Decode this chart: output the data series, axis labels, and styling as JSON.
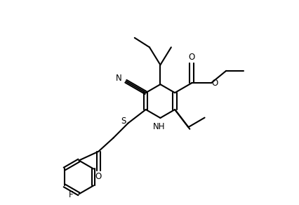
{
  "bg_color": "#ffffff",
  "line_color": "#000000",
  "line_width": 1.5,
  "fig_width": 4.26,
  "fig_height": 2.92,
  "dpi": 100,
  "xlim": [
    0,
    10
  ],
  "ylim": [
    0,
    7.5
  ]
}
